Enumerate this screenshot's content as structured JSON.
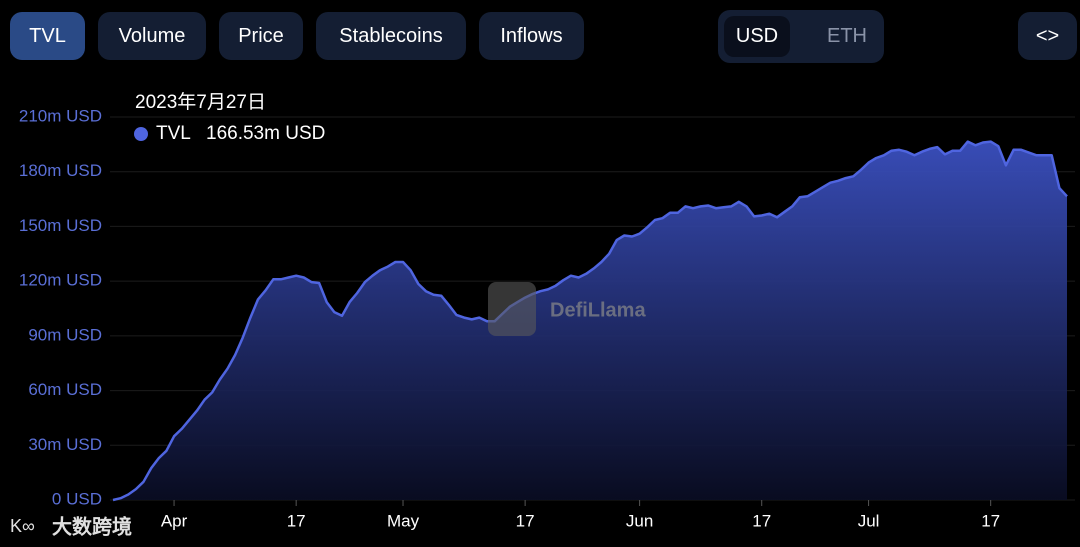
{
  "toolbar": {
    "tabs": [
      "TVL",
      "Volume",
      "Price",
      "Stablecoins",
      "Inflows"
    ],
    "active_tab": 0,
    "currencies": [
      "USD",
      "ETH"
    ],
    "active_currency": 0,
    "embed": "<>"
  },
  "watermarks": [
    "DefiLlama",
    "大数跨境"
  ],
  "chart_data": {
    "type": "area",
    "tooltip": {
      "date": "2023年7月27日",
      "value_label": "166.53m USD"
    },
    "x": [
      "2023-03-24",
      "2023-03-25",
      "2023-03-26",
      "2023-03-27",
      "2023-03-28",
      "2023-03-29",
      "2023-03-30",
      "2023-03-31",
      "2023-04-01",
      "2023-04-02",
      "2023-04-03",
      "2023-04-04",
      "2023-04-05",
      "2023-04-06",
      "2023-04-07",
      "2023-04-08",
      "2023-04-09",
      "2023-04-10",
      "2023-04-11",
      "2023-04-12",
      "2023-04-13",
      "2023-04-14",
      "2023-04-15",
      "2023-04-16",
      "2023-04-17",
      "2023-04-18",
      "2023-04-19",
      "2023-04-20",
      "2023-04-21",
      "2023-04-22",
      "2023-04-23",
      "2023-04-24",
      "2023-04-25",
      "2023-04-26",
      "2023-04-27",
      "2023-04-28",
      "2023-04-29",
      "2023-04-30",
      "2023-05-01",
      "2023-05-02",
      "2023-05-03",
      "2023-05-04",
      "2023-05-05",
      "2023-05-06",
      "2023-05-07",
      "2023-05-08",
      "2023-05-09",
      "2023-05-10",
      "2023-05-11",
      "2023-05-12",
      "2023-05-13",
      "2023-05-14",
      "2023-05-15",
      "2023-05-16",
      "2023-05-17",
      "2023-05-18",
      "2023-05-19",
      "2023-05-20",
      "2023-05-21",
      "2023-05-22",
      "2023-05-23",
      "2023-05-24",
      "2023-05-25",
      "2023-05-26",
      "2023-05-27",
      "2023-05-28",
      "2023-05-29",
      "2023-05-30",
      "2023-05-31",
      "2023-06-01",
      "2023-06-02",
      "2023-06-03",
      "2023-06-04",
      "2023-06-05",
      "2023-06-06",
      "2023-06-07",
      "2023-06-08",
      "2023-06-09",
      "2023-06-10",
      "2023-06-11",
      "2023-06-12",
      "2023-06-13",
      "2023-06-14",
      "2023-06-15",
      "2023-06-16",
      "2023-06-17",
      "2023-06-18",
      "2023-06-19",
      "2023-06-20",
      "2023-06-21",
      "2023-06-22",
      "2023-06-23",
      "2023-06-24",
      "2023-06-25",
      "2023-06-26",
      "2023-06-27",
      "2023-06-28",
      "2023-06-29",
      "2023-06-30",
      "2023-07-01",
      "2023-07-02",
      "2023-07-03",
      "2023-07-04",
      "2023-07-05",
      "2023-07-06",
      "2023-07-07",
      "2023-07-08",
      "2023-07-09",
      "2023-07-10",
      "2023-07-11",
      "2023-07-12",
      "2023-07-13",
      "2023-07-14",
      "2023-07-15",
      "2023-07-16",
      "2023-07-17",
      "2023-07-18",
      "2023-07-19",
      "2023-07-20",
      "2023-07-21",
      "2023-07-22",
      "2023-07-23",
      "2023-07-24",
      "2023-07-25",
      "2023-07-26",
      "2023-07-27"
    ],
    "series": [
      {
        "name": "TVL",
        "color": "#4f65e0",
        "values": [
          0,
          1,
          3,
          6,
          10,
          17.5,
          23,
          27,
          35,
          39,
          44,
          49,
          55,
          59,
          66,
          72,
          79.5,
          89,
          100,
          110,
          115,
          121,
          121,
          122,
          123,
          122,
          119.5,
          119,
          108.5,
          103,
          101,
          108.5,
          113.5,
          119.5,
          123,
          126,
          128,
          130.5,
          130.5,
          126,
          118.5,
          114.5,
          112.5,
          112,
          107,
          101.5,
          100,
          99,
          100,
          98,
          98,
          102,
          106,
          108.5,
          111,
          113,
          114.5,
          115.5,
          117.5,
          120.5,
          123,
          122,
          124,
          127,
          130.5,
          135,
          142.5,
          145,
          144.5,
          146,
          149.5,
          153.5,
          154.5,
          157.5,
          157.5,
          161,
          160,
          161,
          161.5,
          160,
          160.5,
          161,
          163.5,
          161,
          155.5,
          156,
          157,
          155,
          158,
          161,
          166,
          166.5,
          169,
          171.5,
          174,
          175,
          176.5,
          177.5,
          181,
          185,
          187.5,
          189,
          191.5,
          192,
          191,
          189,
          191,
          192.5,
          193.5,
          189.5,
          191.5,
          191.5,
          196.5,
          194.5,
          196,
          196.5,
          194,
          183.5,
          192,
          192,
          190.5,
          189,
          189,
          189,
          171,
          166.53
        ]
      }
    ],
    "xlim": [
      "2023-03-24",
      "2023-07-27"
    ],
    "xticks": [
      {
        "value": "2023-04-01",
        "label": "Apr"
      },
      {
        "value": "2023-04-17",
        "label": "17"
      },
      {
        "value": "2023-05-01",
        "label": "May"
      },
      {
        "value": "2023-05-17",
        "label": "17"
      },
      {
        "value": "2023-06-01",
        "label": "Jun"
      },
      {
        "value": "2023-06-17",
        "label": "17"
      },
      {
        "value": "2023-07-01",
        "label": "Jul"
      },
      {
        "value": "2023-07-17",
        "label": "17"
      }
    ],
    "ylim": [
      0,
      210
    ],
    "yticks": [
      {
        "value": 0,
        "label": "0 USD"
      },
      {
        "value": 30,
        "label": "30m USD"
      },
      {
        "value": 60,
        "label": "60m USD"
      },
      {
        "value": 90,
        "label": "90m USD"
      },
      {
        "value": 120,
        "label": "120m USD"
      },
      {
        "value": 150,
        "label": "150m USD"
      },
      {
        "value": 180,
        "label": "180m USD"
      },
      {
        "value": 210,
        "label": "210m USD"
      }
    ],
    "grid": true
  }
}
